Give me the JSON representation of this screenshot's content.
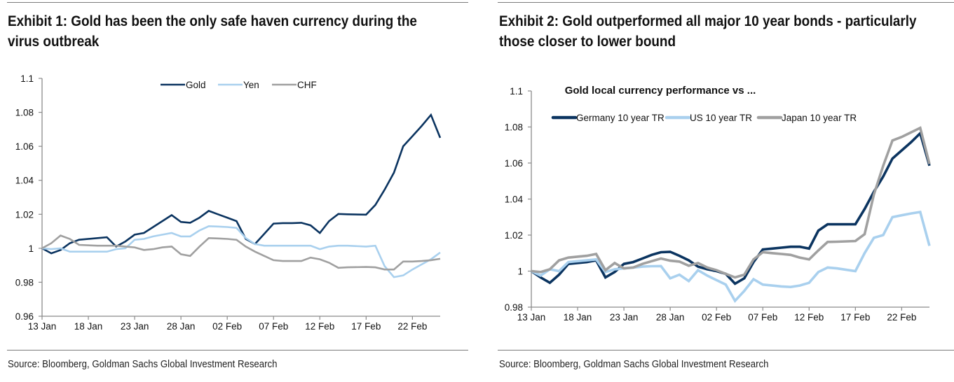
{
  "exhibit1": {
    "title_line1": "Exhibit 1: Gold has been the only safe haven currency during the",
    "title_line2": "virus outbreak",
    "source": "Source: Bloomberg, Goldman Sachs Global Investment Research"
  },
  "exhibit2": {
    "title_line1": "Exhibit 2: Gold outperformed all major 10 year bonds - particularly",
    "title_line2": "those closer to lower bound",
    "source": "Source: Bloomberg, Goldman Sachs Global Investment Research"
  },
  "chart_data": [
    {
      "type": "line",
      "title": "",
      "xlabel": "",
      "ylabel": "",
      "x_unit": "days since 13 Jan",
      "xlim": [
        0,
        43
      ],
      "ylim": [
        0.96,
        1.1
      ],
      "yticks": [
        0.96,
        0.98,
        1,
        1.02,
        1.04,
        1.06,
        1.08,
        1.1
      ],
      "ytick_labels": [
        "0.96",
        "0.98",
        "1",
        "1.02",
        "1.04",
        "1.06",
        "1.08",
        "1.1"
      ],
      "xticks": [
        0,
        5,
        10,
        15,
        20,
        25,
        30,
        35,
        40
      ],
      "xtick_labels": [
        "13 Jan",
        "18 Jan",
        "23 Jan",
        "28 Jan",
        "02 Feb",
        "07 Feb",
        "12 Feb",
        "17 Feb",
        "22 Feb"
      ],
      "grid": false,
      "legend_position": "top-center",
      "series": [
        {
          "name": "Gold",
          "color": "#0b3460",
          "x": [
            0,
            1,
            2,
            3,
            4,
            6,
            7,
            8,
            9,
            10,
            11,
            12,
            13,
            14,
            15,
            16,
            17,
            18,
            19,
            20,
            21,
            22,
            23,
            24,
            25,
            26,
            27,
            28,
            29,
            30,
            31,
            32,
            33,
            35,
            36,
            37,
            38,
            39,
            40,
            41,
            42,
            43
          ],
          "values": [
            1.0,
            0.997,
            0.999,
            1.003,
            1.005,
            1.006,
            1.0065,
            1.001,
            1.004,
            1.008,
            1.009,
            1.0125,
            1.016,
            1.0195,
            1.0155,
            1.015,
            1.018,
            1.022,
            1.02,
            1.018,
            1.016,
            1.0055,
            1.0025,
            1.0085,
            1.0145,
            1.0148,
            1.0148,
            1.015,
            1.0135,
            1.009,
            1.016,
            1.0202,
            1.02,
            1.0198,
            1.0255,
            1.0345,
            1.0445,
            1.06,
            1.066,
            1.072,
            1.0785,
            1.065
          ]
        },
        {
          "name": "Yen",
          "color": "#a9d0ee",
          "x": [
            0,
            1,
            2,
            3,
            4,
            6,
            7,
            8,
            9,
            10,
            11,
            12,
            13,
            14,
            15,
            16,
            17,
            18,
            19,
            20,
            21,
            22,
            23,
            24,
            25,
            26,
            27,
            28,
            29,
            30,
            31,
            32,
            33,
            35,
            36,
            37,
            38,
            39,
            40,
            41,
            42,
            43
          ],
          "values": [
            1.0,
            0.9995,
            1.0,
            0.998,
            0.998,
            0.998,
            0.998,
            0.9995,
            1.0,
            1.005,
            1.0055,
            1.007,
            1.008,
            1.009,
            1.007,
            1.007,
            1.0105,
            1.013,
            1.0128,
            1.0125,
            1.012,
            1.006,
            1.0025,
            1.0015,
            1.0015,
            1.0015,
            1.0015,
            1.0015,
            1.0015,
            0.9995,
            1.001,
            1.0015,
            1.0015,
            1.001,
            1.0015,
            0.9895,
            0.983,
            0.984,
            0.9875,
            0.9905,
            0.9935,
            0.9975
          ]
        },
        {
          "name": "CHF",
          "color": "#a0a0a0",
          "x": [
            0,
            1,
            2,
            3,
            4,
            6,
            7,
            8,
            9,
            10,
            11,
            12,
            13,
            14,
            15,
            16,
            17,
            18,
            19,
            20,
            21,
            22,
            23,
            24,
            25,
            26,
            27,
            28,
            29,
            30,
            31,
            32,
            33,
            35,
            36,
            37,
            38,
            39,
            40,
            41,
            42,
            43
          ],
          "values": [
            1.0,
            1.003,
            1.0075,
            1.0055,
            1.002,
            1.0015,
            1.0015,
            1.0015,
            1.001,
            1.0005,
            0.999,
            0.9995,
            1.0005,
            1.001,
            0.9965,
            0.9955,
            1.001,
            1.006,
            1.0058,
            1.0055,
            1.005,
            1.001,
            0.998,
            0.9955,
            0.993,
            0.9925,
            0.9925,
            0.9925,
            0.9945,
            0.9935,
            0.9915,
            0.9885,
            0.9888,
            0.989,
            0.9888,
            0.9875,
            0.9875,
            0.9922,
            0.9922,
            0.9925,
            0.993,
            0.9938
          ]
        }
      ]
    },
    {
      "type": "line",
      "title": "Gold local currency performance vs ...",
      "xlabel": "",
      "ylabel": "",
      "x_unit": "days since 13 Jan",
      "xlim": [
        0,
        43
      ],
      "ylim": [
        0.98,
        1.1
      ],
      "yticks": [
        0.98,
        1,
        1.02,
        1.04,
        1.06,
        1.08,
        1.1
      ],
      "ytick_labels": [
        "0.98",
        "1",
        "1.02",
        "1.04",
        "1.06",
        "1.08",
        "1.1"
      ],
      "xticks": [
        0,
        5,
        10,
        15,
        20,
        25,
        30,
        35,
        40
      ],
      "xtick_labels": [
        "13 Jan",
        "18 Jan",
        "23 Jan",
        "28 Jan",
        "02 Feb",
        "07 Feb",
        "12 Feb",
        "17 Feb",
        "22 Feb"
      ],
      "grid": false,
      "legend_position": "top-center",
      "series": [
        {
          "name": "Germany 10 year TR",
          "color": "#0b3460",
          "x": [
            0,
            1,
            2,
            3,
            4,
            6,
            7,
            8,
            9,
            10,
            11,
            12,
            13,
            14,
            15,
            16,
            17,
            18,
            19,
            20,
            21,
            22,
            23,
            24,
            25,
            26,
            27,
            28,
            29,
            30,
            31,
            32,
            33,
            35,
            36,
            37,
            38,
            39,
            40,
            41,
            42,
            43
          ],
          "values": [
            1.0,
            0.9965,
            0.9935,
            0.998,
            1.004,
            1.005,
            1.006,
            0.9965,
            0.9995,
            1.004,
            1.005,
            1.007,
            1.009,
            1.0105,
            1.0107,
            1.0085,
            1.006,
            1.0025,
            1.001,
            1.0,
            0.9985,
            0.993,
            0.996,
            1.005,
            1.012,
            1.0125,
            1.013,
            1.0135,
            1.0135,
            1.0125,
            1.0225,
            1.026,
            1.026,
            1.026,
            1.0345,
            1.044,
            1.0525,
            1.0625,
            1.067,
            1.0715,
            1.0765,
            1.0585
          ]
        },
        {
          "name": "US 10 year TR",
          "color": "#a9d0ee",
          "x": [
            0,
            1,
            2,
            3,
            4,
            6,
            7,
            8,
            9,
            10,
            11,
            12,
            13,
            14,
            15,
            16,
            17,
            18,
            19,
            20,
            21,
            22,
            23,
            24,
            25,
            26,
            27,
            28,
            29,
            30,
            31,
            32,
            33,
            35,
            36,
            37,
            38,
            39,
            40,
            41,
            42,
            43
          ],
          "values": [
            1.0,
            0.9975,
            1.001,
            1.0,
            1.005,
            1.006,
            1.0065,
            0.9995,
            1.001,
            1.0015,
            1.002,
            1.0025,
            1.0027,
            1.0028,
            0.996,
            0.998,
            0.9945,
            1.0005,
            0.9975,
            0.995,
            0.9925,
            0.9835,
            0.989,
            0.9955,
            0.9925,
            0.992,
            0.9915,
            0.9912,
            0.992,
            0.9935,
            0.9995,
            1.002,
            1.0015,
            1.0,
            1.01,
            1.0185,
            1.02,
            1.03,
            1.031,
            1.032,
            1.0328,
            1.014
          ]
        },
        {
          "name": "Japan 10 year TR",
          "color": "#a0a0a0",
          "x": [
            0,
            1,
            2,
            3,
            4,
            6,
            7,
            8,
            9,
            10,
            11,
            12,
            13,
            14,
            15,
            16,
            17,
            18,
            19,
            20,
            21,
            22,
            23,
            24,
            25,
            26,
            27,
            28,
            29,
            30,
            31,
            32,
            33,
            35,
            36,
            37,
            38,
            39,
            40,
            41,
            42,
            43
          ],
          "values": [
            1.0,
            0.9995,
            1.001,
            1.006,
            1.0075,
            1.0085,
            1.0095,
            1.0005,
            1.0045,
            1.0015,
            1.002,
            1.004,
            1.0055,
            1.007,
            1.0058,
            1.0053,
            1.003,
            1.0045,
            1.002,
            1.0005,
            0.9985,
            0.9965,
            0.998,
            1.0065,
            1.0105,
            1.01,
            1.0095,
            1.009,
            1.0075,
            1.0065,
            1.0115,
            1.0162,
            1.0163,
            1.0167,
            1.0205,
            1.0425,
            1.0585,
            1.0725,
            1.0745,
            1.077,
            1.0795,
            1.0595
          ]
        }
      ]
    }
  ]
}
